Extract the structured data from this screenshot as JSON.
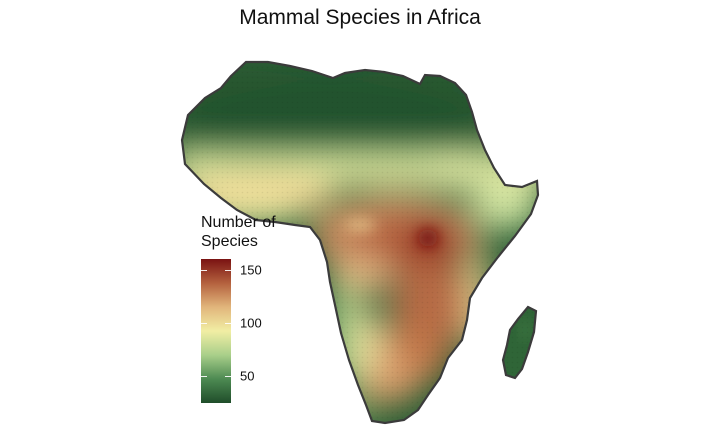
{
  "map": {
    "title": "Mammal Species in Africa",
    "region": "Africa",
    "islands": [
      "Madagascar"
    ],
    "color_scale": {
      "name": "RdYlGn (reversed)",
      "min": 25,
      "max": 160,
      "stops": [
        "#1f4d2a",
        "#4d8a52",
        "#a9cf8a",
        "#f1eea4",
        "#e1b57b",
        "#b4613e",
        "#7a1212"
      ]
    },
    "outline_color": "#3b3b3b"
  },
  "legend": {
    "title_line1": "Number of",
    "title_line2": "Species",
    "ticks": [
      {
        "value": 150,
        "label": "150"
      },
      {
        "value": 100,
        "label": "100"
      },
      {
        "value": 50,
        "label": "50"
      }
    ]
  }
}
